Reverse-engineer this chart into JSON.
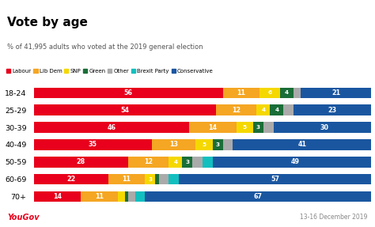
{
  "title": "Vote by age",
  "subtitle": "% of 41,995 adults who voted at the 2019 general election",
  "age_groups": [
    "18-24",
    "25-29",
    "30-39",
    "40-49",
    "50-59",
    "60-69",
    "70+"
  ],
  "parties": [
    "Labour",
    "Lib Dem",
    "SNP",
    "Green",
    "Other",
    "Brexit Party",
    "Conservative"
  ],
  "colors": [
    "#e8001c",
    "#f5a623",
    "#f5d800",
    "#1a6e37",
    "#aaaaaa",
    "#12bfbf",
    "#1a56a0"
  ],
  "data": {
    "Labour": [
      56,
      54,
      46,
      35,
      28,
      22,
      14
    ],
    "Lib Dem": [
      11,
      12,
      14,
      13,
      12,
      11,
      11
    ],
    "SNP": [
      6,
      4,
      5,
      5,
      4,
      3,
      2
    ],
    "Green": [
      4,
      4,
      3,
      3,
      3,
      1,
      1
    ],
    "Other": [
      2,
      3,
      3,
      3,
      3,
      3,
      2
    ],
    "Brexit Party": [
      0,
      0,
      0,
      0,
      3,
      3,
      3
    ],
    "Conservative": [
      21,
      23,
      30,
      41,
      49,
      57,
      67
    ]
  },
  "bar_labels": {
    "Labour": [
      "56",
      "54",
      "46",
      "35",
      "28",
      "22",
      "14"
    ],
    "Lib Dem": [
      "11",
      "12",
      "14",
      "13",
      "12",
      "11",
      "11"
    ],
    "SNP": [
      "6",
      "4",
      "5",
      "5",
      "4",
      "3",
      ""
    ],
    "Green": [
      "4",
      "4",
      "3",
      "3",
      "3",
      "",
      ""
    ],
    "Other": [
      "",
      "",
      "",
      "",
      "",
      "",
      ""
    ],
    "Brexit Party": [
      "",
      "",
      "",
      "",
      "",
      "",
      ""
    ],
    "Conservative": [
      "21",
      "23",
      "30",
      "41",
      "49",
      "57",
      "67"
    ]
  },
  "show_label_min_width": [
    4,
    3,
    3,
    2,
    0,
    0,
    4
  ],
  "footer_left": "YouGov",
  "footer_right": "13-16 December 2019",
  "header_bg": "#e8e8f0",
  "chart_bg": "#ffffff",
  "footer_left_color": "#e8001c",
  "footer_right_color": "#888888"
}
